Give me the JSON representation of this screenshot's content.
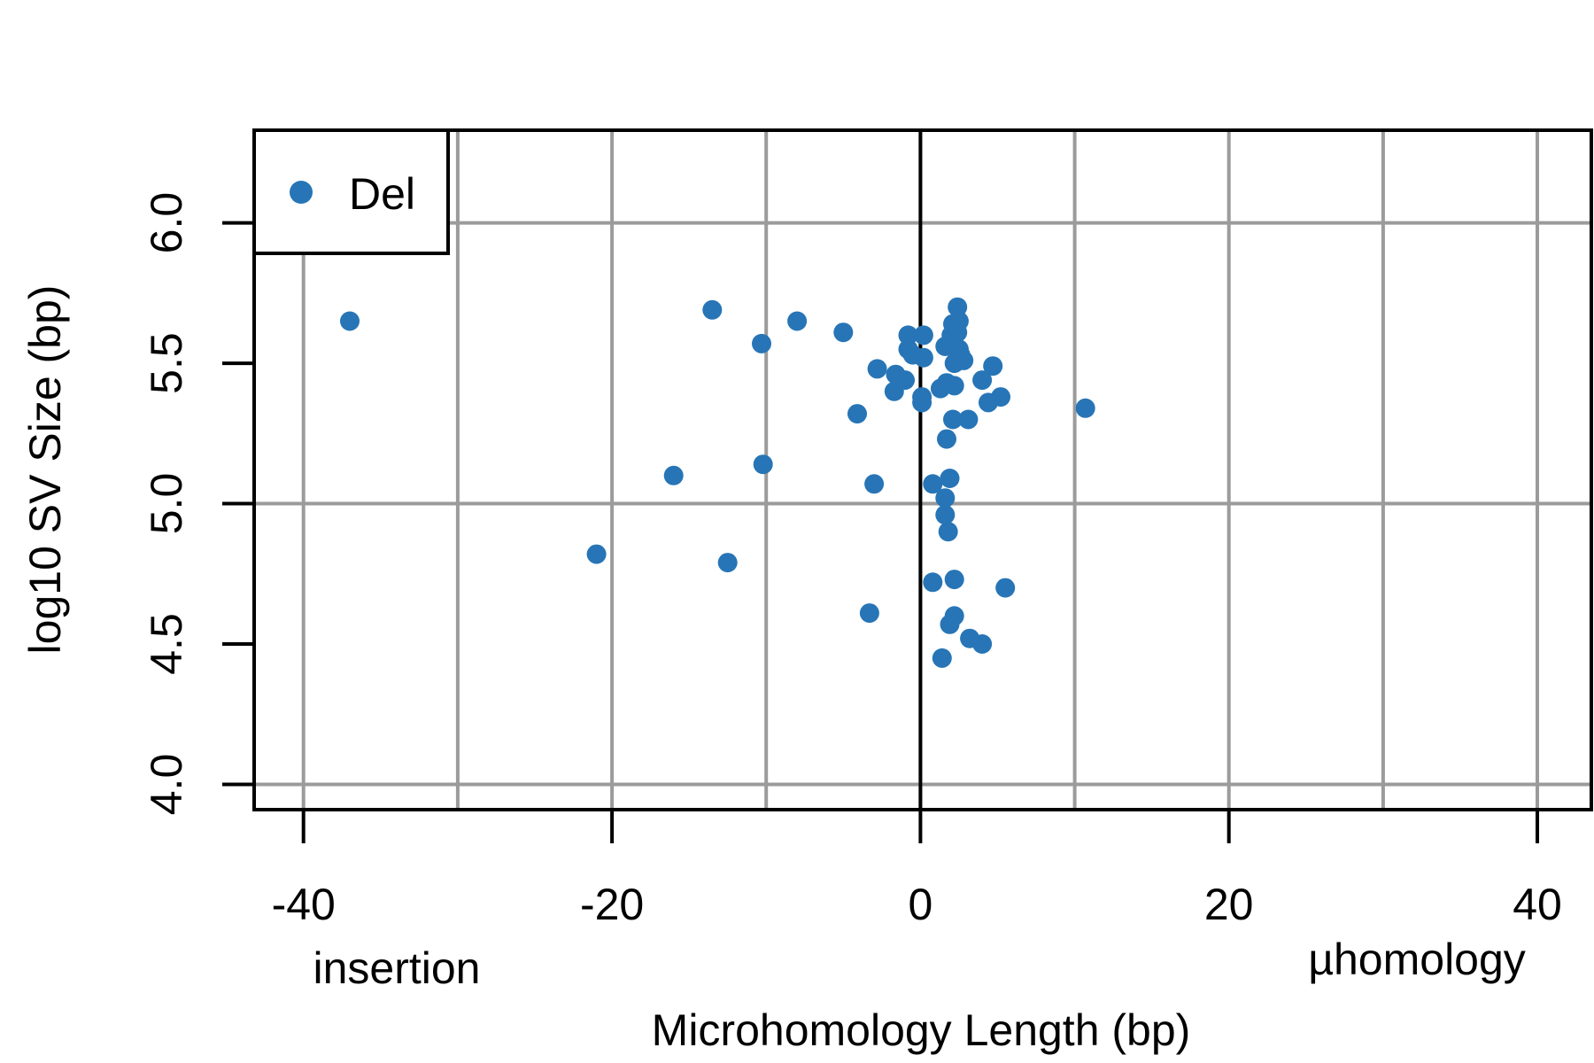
{
  "chart_data": {
    "type": "scatter",
    "title": "",
    "xlabel": "Microhomology Length (bp)",
    "ylabel": "log10 SV Size (bp)",
    "xlim": [
      -43.2,
      43.5
    ],
    "ylim": [
      3.91,
      6.33
    ],
    "x_ticks": [
      -40,
      -20,
      0,
      20,
      40
    ],
    "x_tick_labels": [
      "-40",
      "-20",
      "0",
      "20",
      "40"
    ],
    "y_ticks": [
      4.0,
      4.5,
      5.0,
      5.5,
      6.0
    ],
    "y_tick_labels": [
      "4.0",
      "4.5",
      "5.0",
      "5.5",
      "6.0"
    ],
    "x_grid": [
      -40,
      -30,
      -20,
      -10,
      0,
      10,
      20,
      30,
      40
    ],
    "y_grid": [
      4.0,
      5.0,
      6.0
    ],
    "zero_line_x": 0,
    "grid": true,
    "annotations": {
      "left": "insertion",
      "right": "µhomology"
    },
    "legend": {
      "position": "top-left",
      "entries": [
        "Del"
      ]
    },
    "colors": {
      "series": "#2775b6",
      "grid": "#9b9b9b",
      "axis": "#000000"
    },
    "series": [
      {
        "name": "Del",
        "points": [
          [
            -37,
            5.65
          ],
          [
            -13.5,
            5.69
          ],
          [
            -8,
            5.65
          ],
          [
            -5,
            5.61
          ],
          [
            -10.3,
            5.57
          ],
          [
            -2.8,
            5.48
          ],
          [
            -0.8,
            5.6
          ],
          [
            0.2,
            5.6
          ],
          [
            -0.8,
            5.55
          ],
          [
            0.2,
            5.52
          ],
          [
            -0.5,
            5.53
          ],
          [
            -1.0,
            5.44
          ],
          [
            -1.6,
            5.46
          ],
          [
            -1.7,
            5.4
          ],
          [
            -4.1,
            5.32
          ],
          [
            0.1,
            5.38
          ],
          [
            0.1,
            5.36
          ],
          [
            -16,
            5.1
          ],
          [
            -10.2,
            5.14
          ],
          [
            -3.0,
            5.07
          ],
          [
            -21,
            4.82
          ],
          [
            -12.5,
            4.79
          ],
          [
            -3.3,
            4.61
          ],
          [
            10.7,
            5.34
          ],
          [
            2.4,
            5.7
          ],
          [
            2.1,
            5.64
          ],
          [
            2.5,
            5.65
          ],
          [
            2.0,
            5.6
          ],
          [
            2.4,
            5.61
          ],
          [
            1.6,
            5.56
          ],
          [
            2.5,
            5.55
          ],
          [
            2.6,
            5.53
          ],
          [
            2.8,
            5.51
          ],
          [
            2.2,
            5.5
          ],
          [
            4.7,
            5.49
          ],
          [
            4.0,
            5.44
          ],
          [
            1.7,
            5.43
          ],
          [
            2.2,
            5.42
          ],
          [
            1.3,
            5.41
          ],
          [
            5.2,
            5.38
          ],
          [
            4.4,
            5.36
          ],
          [
            3.1,
            5.3
          ],
          [
            2.1,
            5.3
          ],
          [
            1.7,
            5.23
          ],
          [
            1.9,
            5.09
          ],
          [
            0.8,
            5.07
          ],
          [
            1.6,
            5.02
          ],
          [
            1.6,
            4.96
          ],
          [
            1.8,
            4.9
          ],
          [
            0.8,
            4.72
          ],
          [
            2.2,
            4.73
          ],
          [
            5.5,
            4.7
          ],
          [
            2.2,
            4.6
          ],
          [
            1.9,
            4.57
          ],
          [
            3.2,
            4.52
          ],
          [
            4.0,
            4.5
          ],
          [
            1.4,
            4.45
          ]
        ]
      }
    ]
  }
}
